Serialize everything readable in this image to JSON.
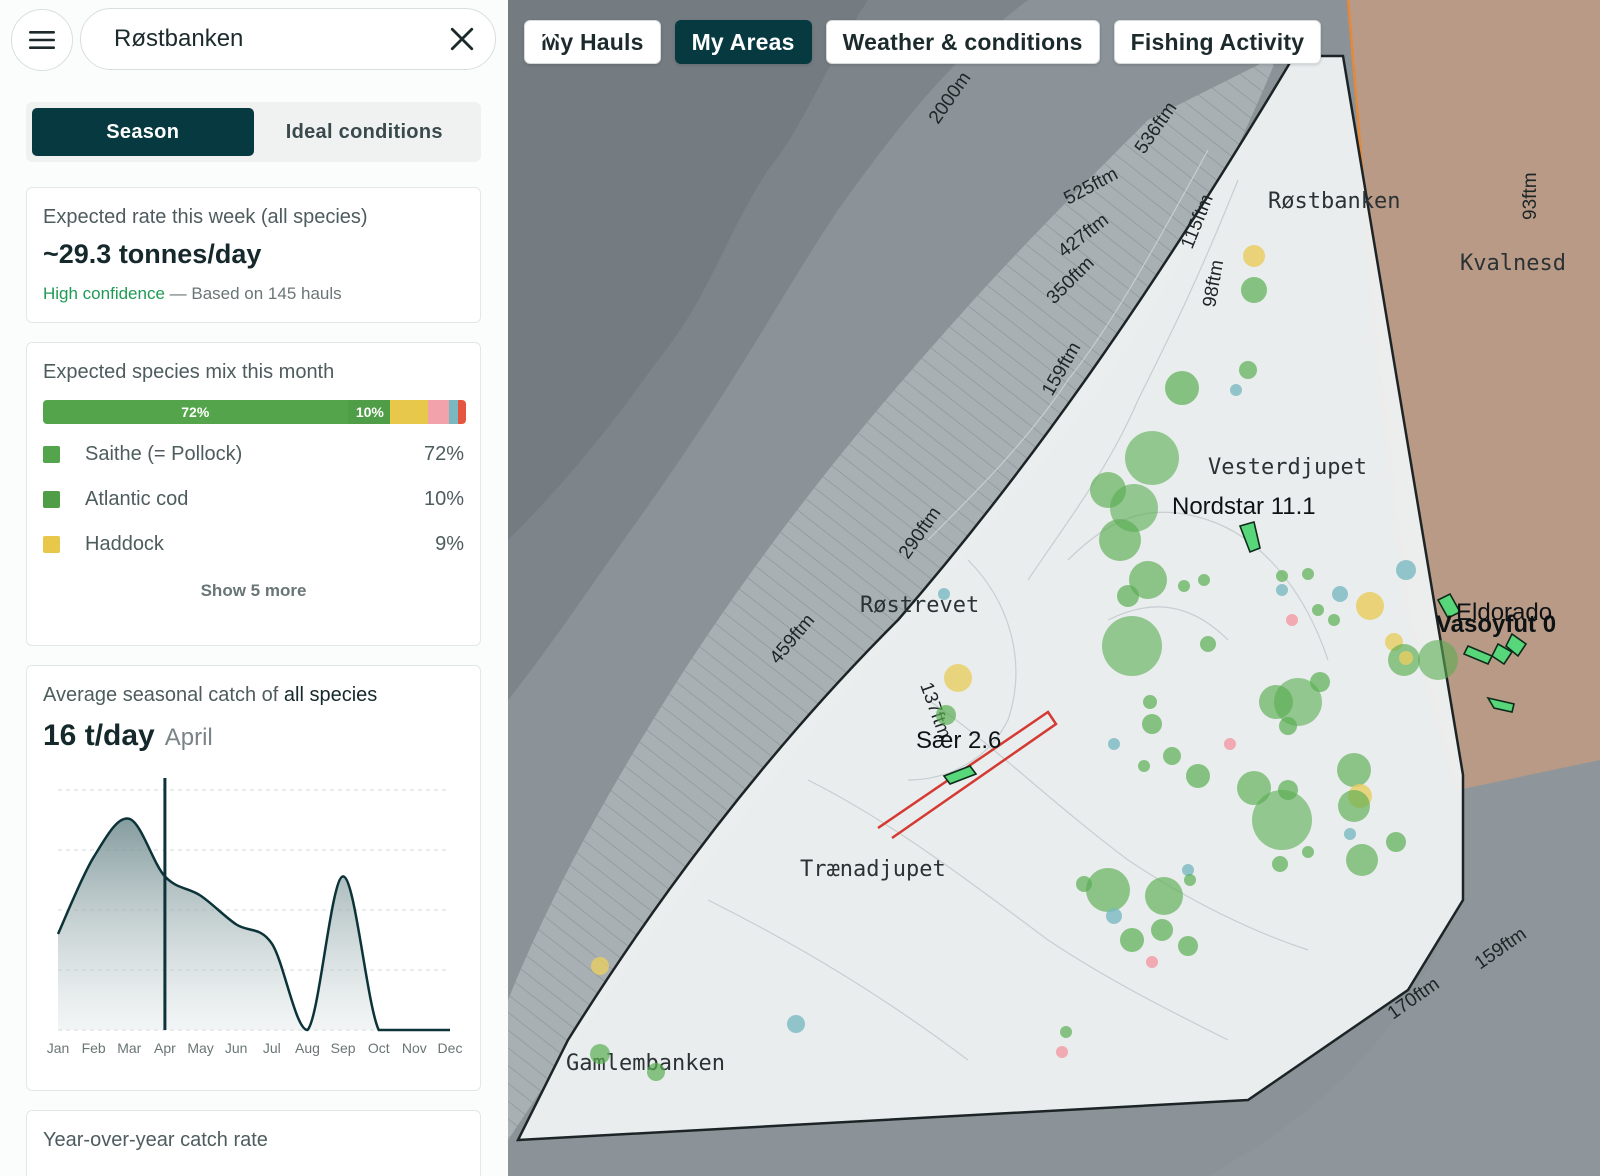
{
  "search": {
    "value": "Røstbanken"
  },
  "toggle": {
    "options": [
      "Season",
      "Ideal conditions"
    ],
    "active": 0
  },
  "rate_card": {
    "label": "Expected rate this week (all species)",
    "value": "~29.3 tonnes/day",
    "confidence": "High confidence",
    "basis": " — Based on 145 hauls"
  },
  "mix_card": {
    "label": "Expected species mix this month",
    "bar": [
      {
        "pct": 72,
        "label": "72%",
        "color": "#53a44a"
      },
      {
        "pct": 10,
        "label": "10%",
        "color": "#4f9d46"
      },
      {
        "pct": 9,
        "label": "",
        "color": "#e8c84a"
      },
      {
        "pct": 5,
        "label": "",
        "color": "#f2a2aa"
      },
      {
        "pct": 2,
        "label": "",
        "color": "#79b9c1"
      },
      {
        "pct": 2,
        "label": "",
        "color": "#e4563f"
      }
    ],
    "species": [
      {
        "name": "Saithe (= Pollock)",
        "pct": "72%",
        "color": "#53a44a"
      },
      {
        "name": "Atlantic cod",
        "pct": "10%",
        "color": "#4f9d46"
      },
      {
        "name": "Haddock",
        "pct": "9%",
        "color": "#e8c84a"
      }
    ],
    "show_more": "Show 5 more"
  },
  "season_card": {
    "label_prefix": "Average seasonal catch of ",
    "label_em": "all species",
    "value": "16 t/day",
    "month": "April"
  },
  "chart_data": {
    "type": "area",
    "x": [
      "Jan",
      "Feb",
      "Mar",
      "Apr",
      "May",
      "Jun",
      "Jul",
      "Aug",
      "Sep",
      "Oct",
      "Nov",
      "Dec"
    ],
    "values": [
      10,
      18,
      22,
      16,
      14,
      11,
      9,
      0,
      16,
      0,
      0,
      0
    ],
    "ylim": [
      0,
      25
    ],
    "marker": "Apr",
    "grid": true,
    "line_color": "#0b3338"
  },
  "yoy_card": {
    "label": "Year-over-year catch rate"
  },
  "chips": [
    {
      "label": "My Hauls",
      "active": false
    },
    {
      "label": "My Areas",
      "active": true
    },
    {
      "label": "Weather & conditions",
      "active": false
    },
    {
      "label": "Fishing Activity",
      "active": false
    }
  ],
  "map": {
    "place_labels": [
      "Røstbanken",
      "Kvalnesd",
      "Vesterdjupet",
      "Røstrevet",
      "Trænadjupet",
      "Gamlembanken"
    ],
    "vessels": [
      "Nordstar 11.1",
      "Sær 2.6",
      "Eldorado",
      "Vasoyfut 0"
    ],
    "depth_labels": [
      "2000m",
      "536ftm",
      "525ftm",
      "427ftm",
      "350ftm",
      "159ftm",
      "115ftm",
      "98ftm",
      "93ftm",
      "290ftm",
      "459ftm",
      "137ftm",
      "170ftm",
      "159ftm"
    ]
  }
}
